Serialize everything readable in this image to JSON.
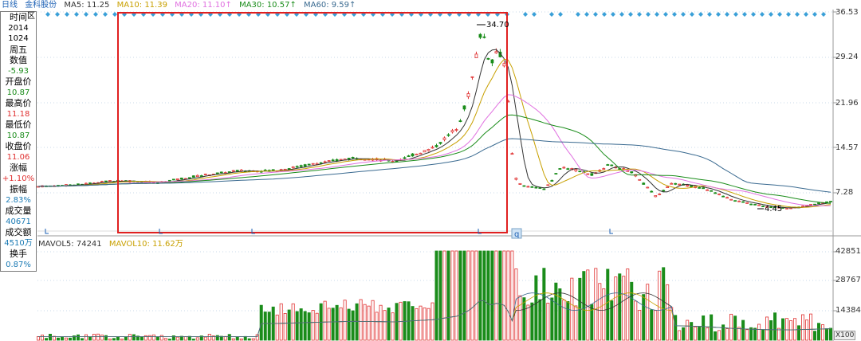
{
  "toolbar": {
    "period": "日线",
    "stock_name": "金科股份",
    "ma5": "MA5: 11.25",
    "ma10": "MA10: 11.39",
    "ma20": "MA20: 11.10↑",
    "ma30": "MA30: 10.57↑",
    "ma60": "MA60: 9.59↑"
  },
  "volume_header": {
    "mavol5": "MAVOL5: 74241",
    "mavol10": "MAVOL10: 11.62万"
  },
  "info_panel": {
    "close_label": "区",
    "rows": [
      {
        "label": "时间",
        "value": "2014"
      },
      {
        "label": "",
        "value": "1024"
      },
      {
        "label": "周五",
        "value": ""
      },
      {
        "label": "数值",
        "value": "-5.93"
      },
      {
        "label": "开盘价",
        "value": "10.87"
      },
      {
        "label": "最高价",
        "value": "11.18"
      },
      {
        "label": "最低价",
        "value": "10.87"
      },
      {
        "label": "收盘价",
        "value": "11.06"
      },
      {
        "label": "涨幅",
        "value": "+1.10%"
      },
      {
        "label": "振幅",
        "value": "2.83%"
      },
      {
        "label": "成交量",
        "value": "40671"
      },
      {
        "label": "成交额",
        "value": "4510万"
      },
      {
        "label": "换手",
        "value": "0.87%"
      }
    ]
  },
  "price_axis": [
    "36.53",
    "29.24",
    "21.96",
    "14.57",
    "7.28"
  ],
  "volume_axis": [
    "42851",
    "28767",
    "14384",
    "X100"
  ],
  "annotations": {
    "high_label": "34.70",
    "low_label": "4.45",
    "marker_q": "q"
  },
  "colors": {
    "up": "#e03030",
    "down": "#1a8c1a",
    "ma5": "#333333",
    "ma10": "#c8a000",
    "ma20": "#e070e0",
    "ma30": "#1a8c1a",
    "ma60": "#3a6a90",
    "highlight": "#e02020",
    "diamond": "#3aa0d8"
  },
  "chart_data": {
    "type": "line",
    "title": "金科股份 日线",
    "ylim": [
      4.45,
      36.53
    ],
    "series": [
      {
        "name": "MA5",
        "values": []
      },
      {
        "name": "MA10",
        "values": []
      },
      {
        "name": "MA20",
        "values": []
      },
      {
        "name": "MA30",
        "values": []
      },
      {
        "name": "MA60",
        "values": []
      }
    ],
    "ma_labels": [
      "MA5: 11.25",
      "MA10: 11.39",
      "MA20: 11.10↑",
      "MA30: 10.57↑",
      "MA60: 9.59↑"
    ],
    "price_ticks": [
      36.53,
      29.24,
      21.96,
      14.57,
      7.28
    ],
    "volume_ticks": [
      42851,
      28767,
      14384
    ],
    "volume_unit": "X100",
    "high": 34.7,
    "low": 4.45
  }
}
